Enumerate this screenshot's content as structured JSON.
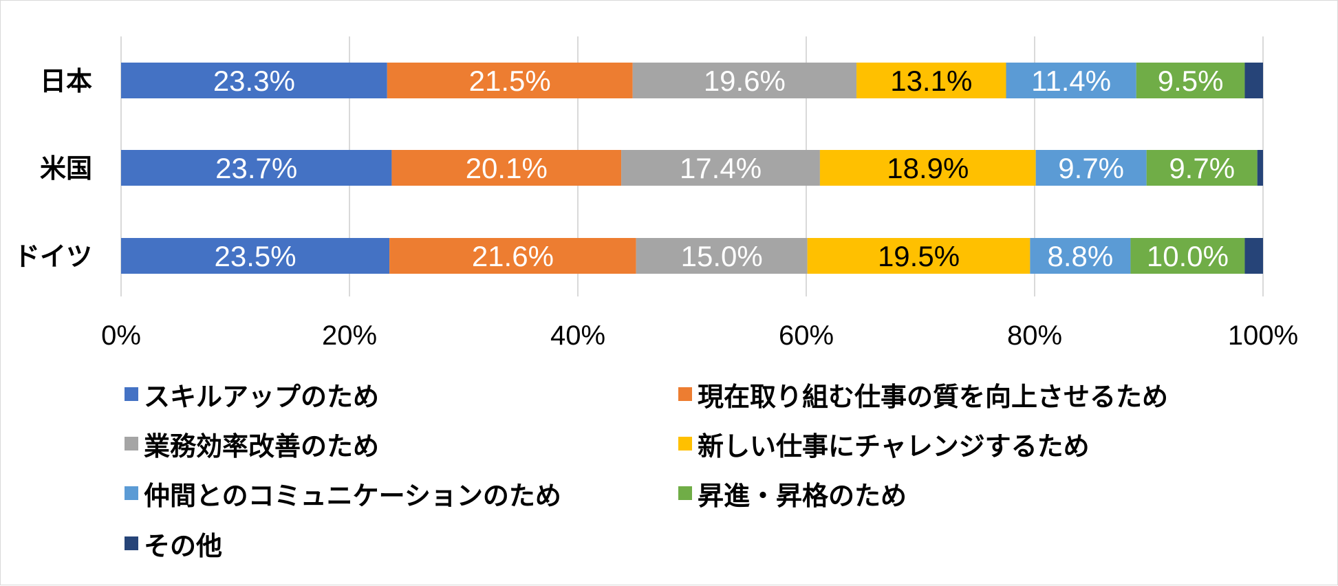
{
  "chart_data": {
    "type": "bar",
    "orientation": "horizontal",
    "stacked": true,
    "percent_stacked": true,
    "categories": [
      "日本",
      "米国",
      "ドイツ"
    ],
    "series": [
      {
        "name": "スキルアップのため",
        "color": "#4472C4",
        "label_color": "#FFFFFF",
        "values": [
          23.3,
          23.7,
          23.5
        ],
        "labels": [
          "23.3%",
          "23.7%",
          "23.5%"
        ]
      },
      {
        "name": "現在取り組む仕事の質を向上させるため",
        "color": "#ED7D31",
        "label_color": "#FFFFFF",
        "values": [
          21.5,
          20.1,
          21.6
        ],
        "labels": [
          "21.5%",
          "20.1%",
          "21.6%"
        ]
      },
      {
        "name": "業務効率改善のため",
        "color": "#A5A5A5",
        "label_color": "#FFFFFF",
        "values": [
          19.6,
          17.4,
          15.0
        ],
        "labels": [
          "19.6%",
          "17.4%",
          "15.0%"
        ]
      },
      {
        "name": "新しい仕事にチャレンジするため",
        "color": "#FFC000",
        "label_color": "#000000",
        "values": [
          13.1,
          18.9,
          19.5
        ],
        "labels": [
          "13.1%",
          "18.9%",
          "19.5%"
        ]
      },
      {
        "name": "仲間とのコミュニケーションのため",
        "color": "#5B9BD5",
        "label_color": "#FFFFFF",
        "values": [
          11.4,
          9.7,
          8.8
        ],
        "labels": [
          "11.4%",
          "9.7%",
          "8.8%"
        ]
      },
      {
        "name": "昇進・昇格のため",
        "color": "#70AD47",
        "label_color": "#FFFFFF",
        "values": [
          9.5,
          9.7,
          10.0
        ],
        "labels": [
          "9.5%",
          "9.7%",
          "10.0%"
        ]
      },
      {
        "name": "その他",
        "color": "#264478",
        "label_color": "#FFFFFF",
        "values": [
          1.6,
          0.5,
          1.6
        ],
        "labels": [
          "",
          "",
          ""
        ]
      }
    ],
    "xlim": [
      0,
      100
    ],
    "xticks": [
      "0%",
      "20%",
      "40%",
      "60%",
      "80%",
      "100%"
    ],
    "grid": true,
    "legend_position": "bottom"
  }
}
